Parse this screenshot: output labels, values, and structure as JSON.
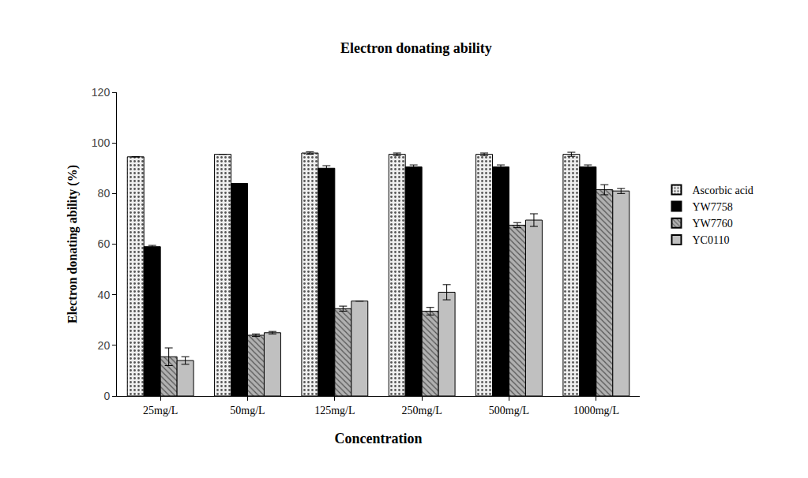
{
  "chart_data": {
    "type": "bar",
    "title": "Electron donating ability",
    "x_label": "Concentration",
    "y_label": "Electron donating ability (%)",
    "categories": [
      "25mg/L",
      "50mg/L",
      "125mg/L",
      "250mg/L",
      "500mg/L",
      "1000mg/L"
    ],
    "series": [
      {
        "name": "Ascorbic acid",
        "color": "#eeeeee",
        "marker": "dots",
        "values": [
          94.5,
          95.5,
          96,
          95.5,
          95.5,
          95.5
        ],
        "errors": [
          0,
          0,
          0.5,
          0.5,
          0.5,
          0.8
        ]
      },
      {
        "name": "YW7758",
        "color": "#000000",
        "marker": "solid",
        "values": [
          59,
          84,
          90,
          90.5,
          90.5,
          90.5
        ],
        "errors": [
          0.5,
          0,
          1,
          0.8,
          0.8,
          0.8
        ]
      },
      {
        "name": "YW7760",
        "color": "#b0b0b0",
        "marker": "hatch",
        "values": [
          15.5,
          24,
          34.5,
          33.5,
          67.5,
          81.5
        ],
        "errors": [
          3.5,
          0.5,
          1,
          1.5,
          1,
          2
        ]
      },
      {
        "name": "YC0110",
        "color": "#c0c0c0",
        "marker": "solid",
        "values": [
          14,
          25,
          37.5,
          41,
          69.5,
          81
        ],
        "errors": [
          1.5,
          0.5,
          0,
          3,
          2.5,
          1
        ]
      }
    ],
    "ylim": [
      0,
      120
    ],
    "yticks": [
      0,
      20,
      40,
      60,
      80,
      100,
      120
    ],
    "grid": false,
    "legend": "right"
  }
}
